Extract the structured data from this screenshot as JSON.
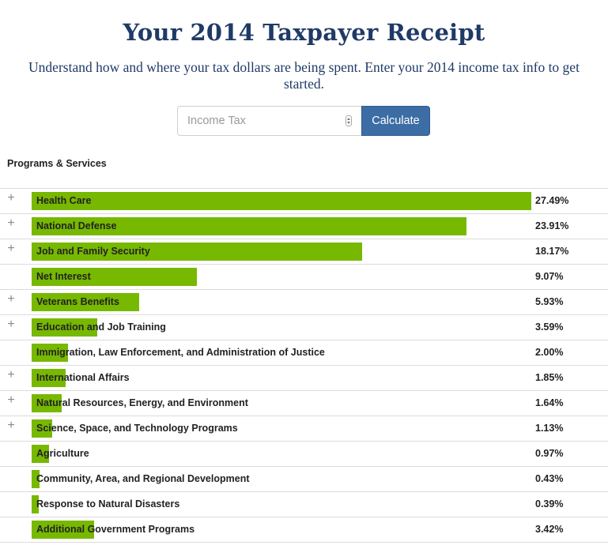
{
  "header": {
    "title": "Your 2014 Taxpayer Receipt",
    "subtitle": "Understand how and where your tax dollars are being spent. Enter your 2014 income tax info to get started."
  },
  "form": {
    "input_placeholder": "Income Tax",
    "button_label": "Calculate"
  },
  "section_heading": "Programs & Services",
  "colors": {
    "bar": "#77b800",
    "title": "#1f3a66",
    "button": "#3c6da4"
  },
  "chart_data": {
    "type": "bar",
    "categories": [
      "Health Care",
      "National Defense",
      "Job and Family Security",
      "Net Interest",
      "Veterans Benefits",
      "Education and Job Training",
      "Immigration, Law Enforcement, and Administration of Justice",
      "International Affairs",
      "Natural Resources, Energy, and Environment",
      "Science, Space, and Technology Programs",
      "Agriculture",
      "Community, Area, and Regional Development",
      "Response to Natural Disasters",
      "Additional Government Programs"
    ],
    "values": [
      27.49,
      23.91,
      18.17,
      9.07,
      5.93,
      3.59,
      2.0,
      1.85,
      1.64,
      1.13,
      0.97,
      0.43,
      0.39,
      3.42
    ],
    "labels": [
      "27.49%",
      "23.91%",
      "18.17%",
      "9.07%",
      "5.93%",
      "3.59%",
      "2.00%",
      "1.85%",
      "1.64%",
      "1.13%",
      "0.97%",
      "0.43%",
      "0.39%",
      "3.42%"
    ],
    "expandable": [
      true,
      true,
      true,
      false,
      true,
      true,
      false,
      true,
      true,
      true,
      false,
      false,
      false,
      false
    ]
  }
}
